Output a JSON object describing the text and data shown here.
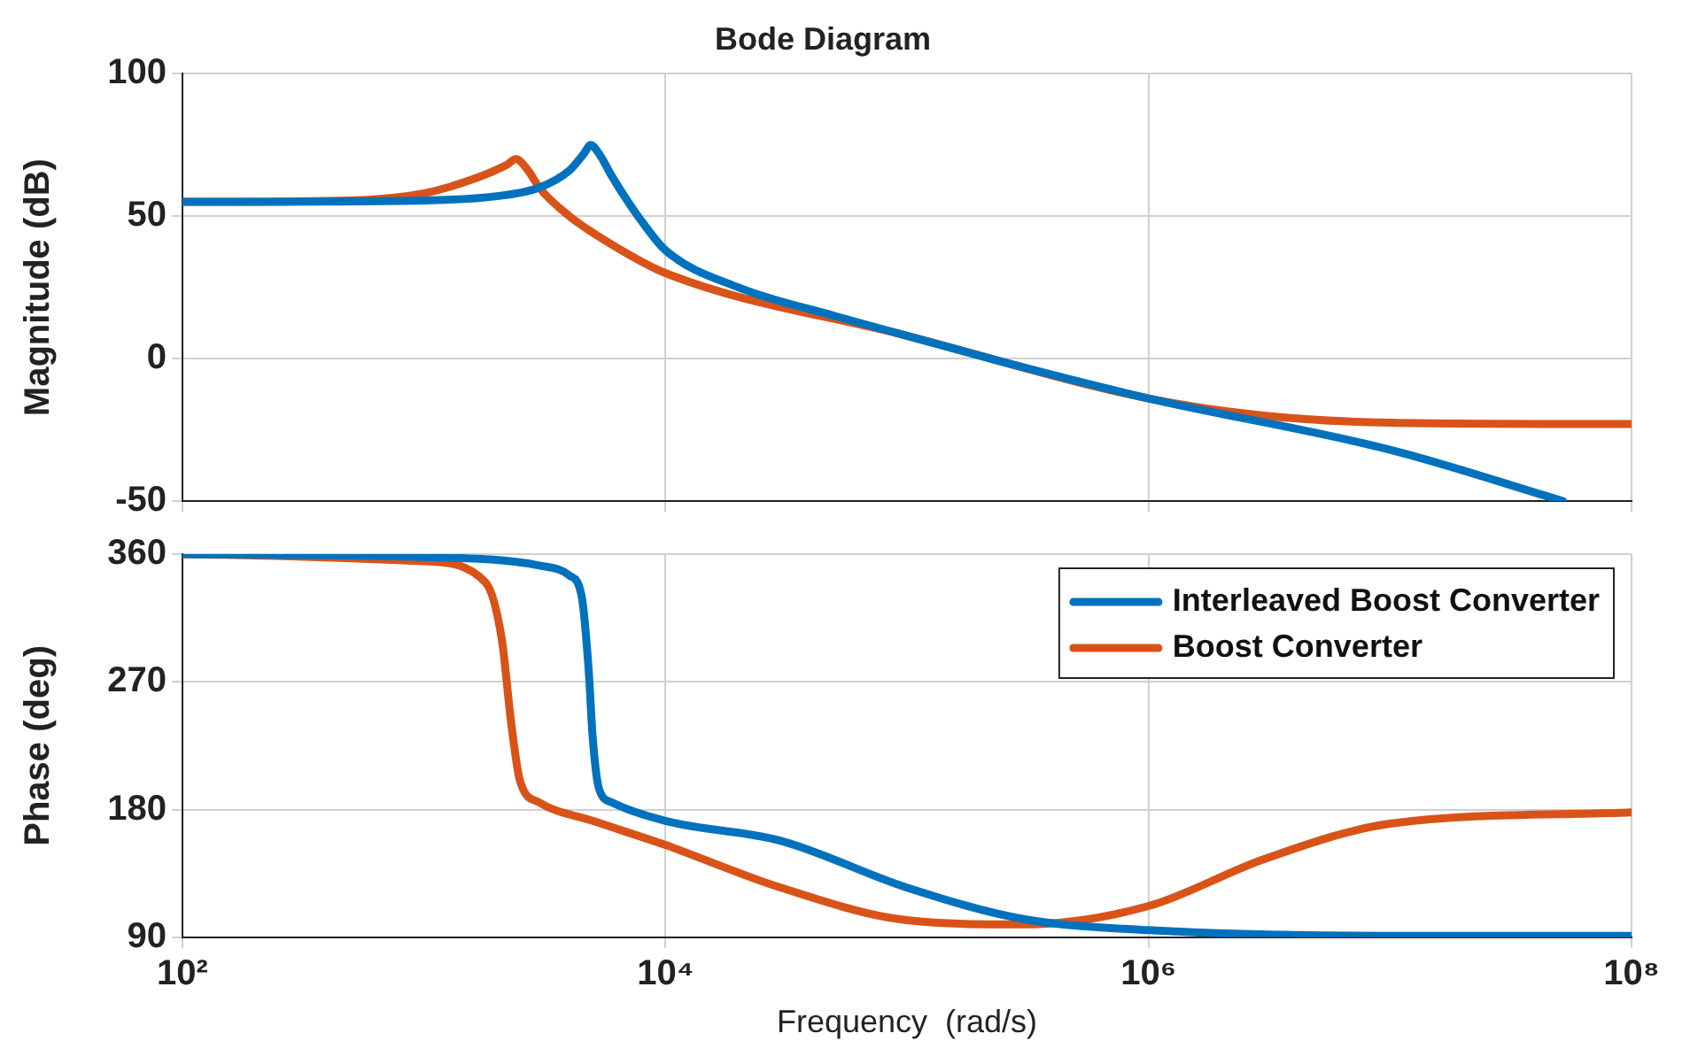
{
  "chart_data": [
    {
      "type": "line",
      "title": "Bode Diagram",
      "ylabel": "Magnitude (dB)",
      "log": "x",
      "xlim": [
        100,
        100000000
      ],
      "xticks": [
        100,
        10000,
        1000000,
        100000000
      ],
      "ylim": [
        -50,
        100
      ],
      "yticks": [
        -50,
        0,
        50,
        100
      ],
      "grid": true,
      "legend": false,
      "tick_labels": "y",
      "marker": "none",
      "line_style": "solid",
      "series": [
        {
          "color": "#0072bd",
          "x": [
            100,
            1000,
            2000,
            3000,
            4000,
            4600,
            4900,
            5300,
            6000,
            7000,
            8000,
            10000,
            20000,
            50000,
            100000,
            300000,
            1000000,
            10000000,
            52000000
          ],
          "values": [
            55,
            55.5,
            57,
            60,
            66,
            72,
            75,
            72,
            64,
            55,
            48,
            38,
            25,
            15,
            8,
            -3,
            -14,
            -32,
            -50
          ]
        },
        {
          "color": "#d95319",
          "x": [
            100,
            500,
            1000,
            1600,
            2200,
            2400,
            2700,
            3000,
            4000,
            6000,
            10000,
            100000,
            1000000,
            3000000,
            10000000,
            100000000
          ],
          "values": [
            55,
            55.5,
            58,
            63,
            68,
            70,
            66,
            60,
            50,
            40,
            30,
            8,
            -14,
            -20,
            -22.5,
            -23
          ]
        }
      ]
    },
    {
      "type": "line",
      "xlabel": "Frequency  (rad/s)",
      "ylabel": "Phase (deg)",
      "log": "x",
      "xlim": [
        100,
        100000000
      ],
      "xticks": [
        {
          "value": 100,
          "label": "10²"
        },
        {
          "value": 10000,
          "label": "10⁴"
        },
        {
          "value": 1000000,
          "label": "10⁶"
        },
        {
          "value": 100000000,
          "label": "10⁸"
        }
      ],
      "ylim": [
        90,
        360
      ],
      "yticks": [
        90,
        180,
        270,
        360
      ],
      "grid": true,
      "legend": "top right",
      "marker": "none",
      "line_style": "solid",
      "series": [
        {
          "name": "Interleaved Boost Converter",
          "color": "#0072bd",
          "x": [
            100,
            1000,
            3000,
            4000,
            4500,
            4800,
            5000,
            5300,
            6000,
            10000,
            30000,
            100000,
            300000,
            1000000,
            10000000,
            100000000
          ],
          "values": [
            360,
            358,
            352,
            345,
            330,
            280,
            230,
            195,
            185,
            172,
            158,
            125,
            103,
            95,
            91,
            91
          ]
        },
        {
          "name": "Boost Converter",
          "color": "#d95319",
          "x": [
            100,
            1000,
            1800,
            2100,
            2300,
            2500,
            3000,
            5000,
            10000,
            30000,
            100000,
            300000,
            1000000,
            3000000,
            10000000,
            100000000
          ],
          "values": [
            360,
            355,
            340,
            300,
            240,
            200,
            185,
            172,
            155,
            125,
            102,
            99,
            112,
            145,
            170,
            178
          ]
        }
      ]
    }
  ]
}
